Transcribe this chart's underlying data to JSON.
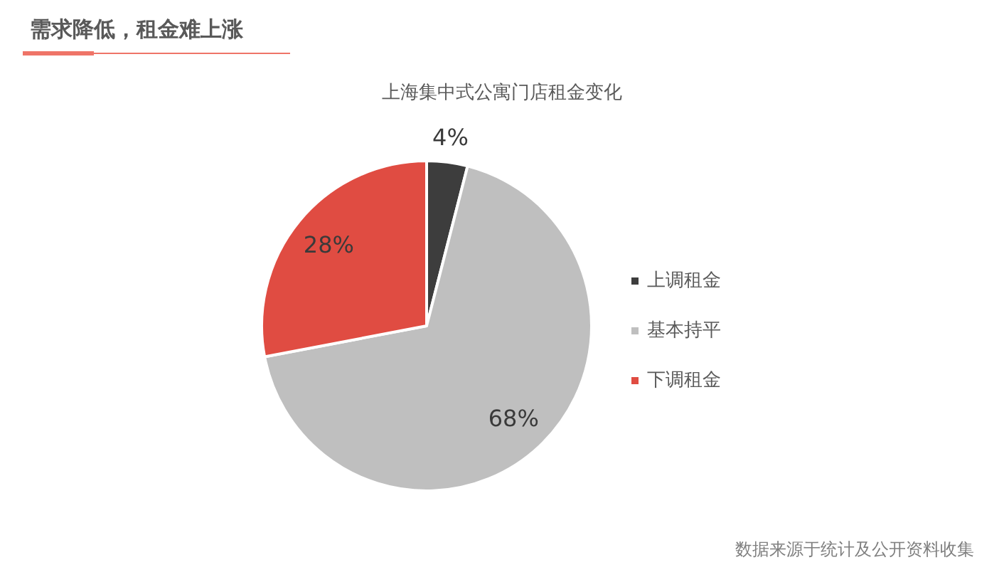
{
  "chart_data": {
    "type": "pie",
    "title": "需求降低，租金难上涨",
    "subtitle": "上海集中式公寓门店租金变化",
    "categories": [
      "上调租金",
      "基本持平",
      "下调租金"
    ],
    "values": [
      4,
      68,
      28
    ],
    "colors": [
      "#3d3d3d",
      "#bfbfbf",
      "#e04c42"
    ],
    "value_labels": [
      "4%",
      "68%",
      "28%"
    ],
    "legend": "right",
    "annotations": [
      "数据来源于统计及公开资料收集"
    ]
  }
}
